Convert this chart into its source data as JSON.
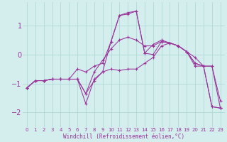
{
  "xlabel": "Windchill (Refroidissement éolien,°C)",
  "bg_color": "#d4eeee",
  "grid_color": "#b0d8d8",
  "line_color": "#993399",
  "xlim": [
    -0.5,
    23.5
  ],
  "ylim": [
    -2.5,
    1.8
  ],
  "yticks": [
    -2,
    -1,
    0,
    1
  ],
  "xticks": [
    0,
    1,
    2,
    3,
    4,
    5,
    6,
    7,
    8,
    9,
    10,
    11,
    12,
    13,
    14,
    15,
    16,
    17,
    18,
    19,
    20,
    21,
    22,
    23
  ],
  "series": [
    [
      -1.15,
      -0.9,
      -0.9,
      -0.85,
      -0.85,
      -0.85,
      -0.85,
      -1.35,
      -0.9,
      -0.6,
      -0.5,
      -0.55,
      -0.5,
      -0.5,
      -0.3,
      -0.1,
      0.3,
      0.4,
      0.3,
      0.1,
      -0.1,
      -0.4,
      -1.8,
      -1.85
    ],
    [
      -1.15,
      -0.9,
      -0.9,
      -0.85,
      -0.85,
      -0.85,
      -0.5,
      -0.6,
      -0.4,
      -0.3,
      0.45,
      1.35,
      1.4,
      1.5,
      0.05,
      0.35,
      0.5,
      0.4,
      0.3,
      0.1,
      -0.3,
      -0.4,
      -0.4,
      -1.85
    ],
    [
      -1.15,
      -0.9,
      -0.9,
      -0.85,
      -0.85,
      -0.85,
      -0.85,
      -1.7,
      -0.85,
      -0.6,
      0.45,
      1.35,
      1.45,
      1.5,
      0.05,
      0.0,
      0.45,
      0.4,
      0.3,
      0.1,
      -0.3,
      -0.4,
      -1.8,
      -1.85
    ],
    [
      -1.15,
      -0.9,
      -0.9,
      -0.85,
      -0.85,
      -0.85,
      -0.85,
      -1.35,
      -0.6,
      -0.2,
      0.2,
      0.5,
      0.6,
      0.5,
      0.3,
      0.3,
      0.45,
      0.4,
      0.3,
      0.1,
      -0.4,
      -0.4,
      -0.4,
      -1.6
    ]
  ]
}
